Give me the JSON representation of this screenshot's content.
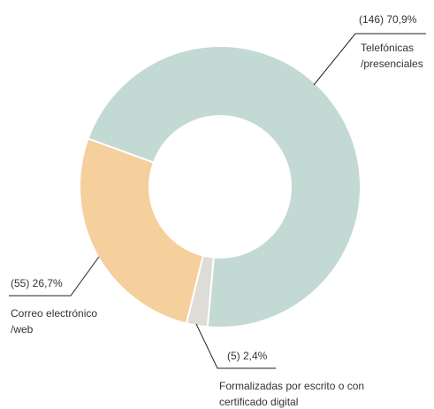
{
  "chart_data": {
    "type": "donut",
    "categories": [
      [
        "Telefónicas",
        "/presenciales"
      ],
      [
        "Formalizadas por escrito o con",
        "certificado digital"
      ],
      [
        "Correo electrónico",
        "/web"
      ]
    ],
    "values": [
      146,
      5,
      55
    ],
    "value_labels": [
      "(146) 70,9%",
      "(5) 2,4%",
      "(55) 26,7%"
    ],
    "colors": [
      "#c3d9d4",
      "#dddcd7",
      "#f5cf9c"
    ]
  }
}
